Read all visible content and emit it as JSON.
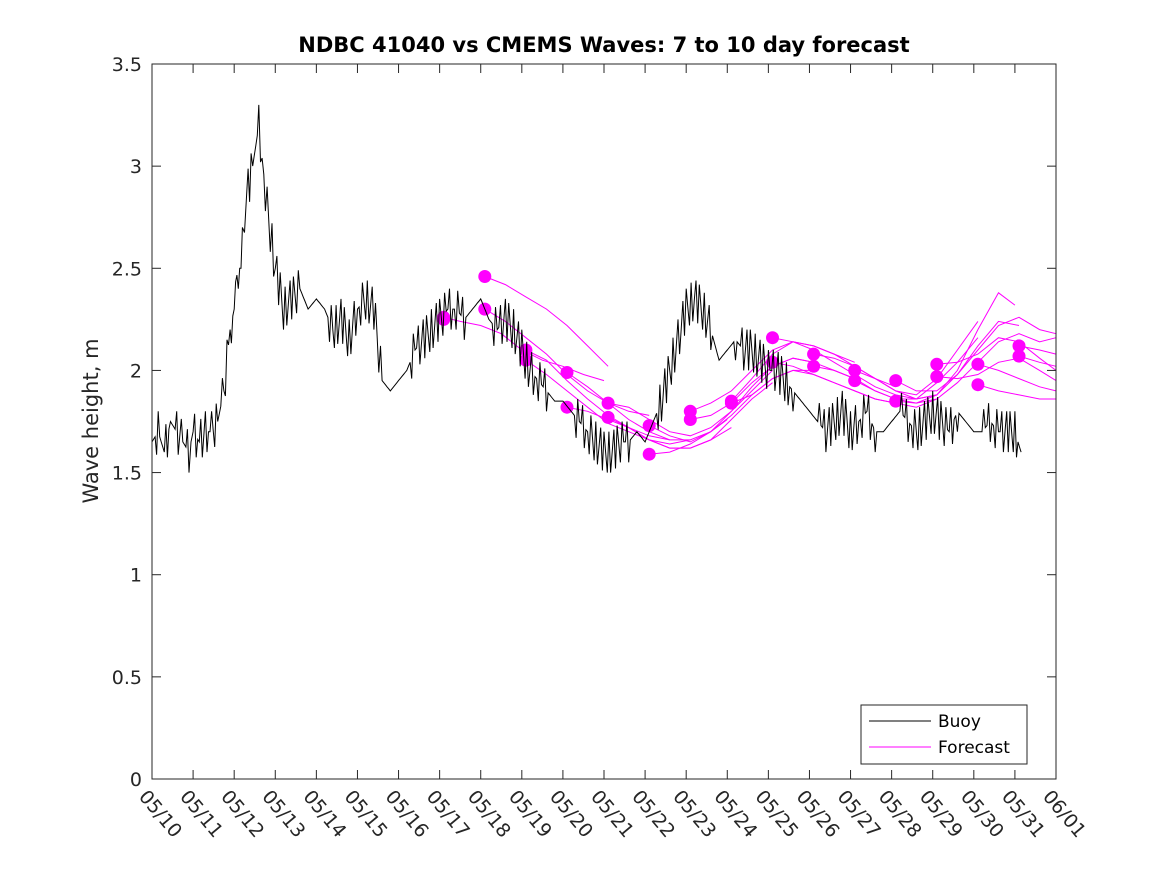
{
  "chart_data": {
    "type": "line",
    "title": "NDBC 41040 vs CMEMS Waves: 7 to 10 day forecast",
    "ylabel": "Wave height, m",
    "xlabel": "",
    "ylim": [
      0,
      3.5
    ],
    "yticks": [
      0,
      0.5,
      1,
      1.5,
      2,
      2.5,
      3,
      3.5
    ],
    "xlim": [
      "05/10",
      "06/01"
    ],
    "xticks": [
      "05/10",
      "05/11",
      "05/12",
      "05/13",
      "05/14",
      "05/15",
      "05/16",
      "05/17",
      "05/18",
      "05/19",
      "05/20",
      "05/21",
      "05/22",
      "05/23",
      "05/24",
      "05/25",
      "05/26",
      "05/27",
      "05/28",
      "05/29",
      "05/30",
      "05/31",
      "06/01"
    ],
    "grid": false,
    "legend": {
      "placement": "bottom-right",
      "entries": [
        "Buoy",
        "Forecast"
      ]
    },
    "colors": {
      "buoy": "#000000",
      "forecast": "#ff00ff"
    },
    "series": [
      {
        "name": "Buoy",
        "x": [
          0.0,
          0.15,
          0.3,
          0.45,
          0.6,
          0.75,
          0.9,
          1.0,
          1.15,
          1.3,
          1.45,
          1.6,
          1.75,
          1.9,
          2.0,
          2.1,
          2.2,
          2.3,
          2.45,
          2.6,
          2.8,
          3.0,
          3.2,
          3.4,
          3.6,
          3.8,
          4.0,
          4.2,
          4.4,
          4.6,
          4.8,
          5.0,
          5.2,
          5.4,
          5.6,
          5.8,
          6.0,
          6.2,
          6.4,
          6.6,
          6.8,
          7.0,
          7.2,
          7.4,
          7.6,
          7.8,
          8.0,
          8.2,
          8.4,
          8.6,
          8.8,
          9.0,
          9.2,
          9.4,
          9.6,
          9.8,
          10.0,
          10.2,
          10.4,
          10.6,
          10.8,
          11.0,
          11.2,
          11.4,
          11.6,
          11.8,
          12.0,
          12.2,
          12.4,
          12.6,
          12.8,
          13.0,
          13.2,
          13.4,
          13.6,
          13.8,
          14.0,
          14.2,
          14.4,
          14.6,
          14.8,
          15.0,
          15.2,
          15.4,
          15.6,
          15.8,
          16.0,
          16.2,
          16.4,
          16.6,
          16.8,
          17.0,
          17.2,
          17.4,
          17.6,
          17.8,
          18.0,
          18.2,
          18.4,
          18.6,
          18.8,
          19.0,
          19.2,
          19.4,
          19.6,
          19.8,
          20.0,
          20.2,
          20.4,
          20.6,
          20.8,
          21.0,
          21.15
        ],
        "y": [
          1.65,
          1.7,
          1.6,
          1.75,
          1.7,
          1.65,
          1.6,
          1.7,
          1.65,
          1.7,
          1.7,
          1.75,
          1.9,
          2.2,
          2.3,
          2.4,
          2.7,
          2.85,
          3.0,
          3.2,
          2.8,
          2.5,
          2.3,
          2.35,
          2.4,
          2.3,
          2.35,
          2.3,
          2.2,
          2.25,
          2.15,
          2.3,
          2.35,
          2.3,
          1.95,
          1.9,
          1.95,
          2.0,
          2.1,
          2.15,
          2.2,
          2.25,
          2.3,
          2.3,
          2.25,
          2.3,
          2.35,
          2.25,
          2.2,
          2.25,
          2.2,
          2.1,
          2.0,
          1.95,
          1.9,
          1.85,
          1.85,
          1.8,
          1.75,
          1.7,
          1.65,
          1.6,
          1.6,
          1.65,
          1.65,
          1.7,
          1.65,
          1.75,
          1.85,
          2.0,
          2.15,
          2.3,
          2.35,
          2.3,
          2.2,
          2.05,
          2.1,
          2.15,
          2.1,
          2.1,
          2.05,
          2.0,
          2.0,
          1.95,
          1.9,
          1.85,
          1.8,
          1.75,
          1.7,
          1.75,
          1.8,
          1.7,
          1.75,
          1.8,
          1.7,
          1.7,
          1.75,
          1.8,
          1.75,
          1.7,
          1.75,
          1.8,
          1.75,
          1.7,
          1.8,
          1.75,
          1.7,
          1.7,
          1.75,
          1.7,
          1.7,
          1.7,
          1.6
        ]
      },
      {
        "name": "Forecast",
        "points": [
          [
            7.1,
            2.26
          ],
          [
            7.1,
            2.25
          ],
          [
            8.1,
            2.46
          ],
          [
            8.1,
            2.3
          ],
          [
            9.1,
            2.1
          ],
          [
            9.1,
            2.05
          ],
          [
            10.1,
            1.99
          ],
          [
            10.1,
            1.82
          ],
          [
            11.1,
            1.84
          ],
          [
            11.1,
            1.77
          ],
          [
            12.1,
            1.73
          ],
          [
            12.1,
            1.59
          ],
          [
            13.1,
            1.8
          ],
          [
            13.1,
            1.76
          ],
          [
            14.1,
            1.85
          ],
          [
            14.1,
            1.84
          ],
          [
            15.1,
            2.16
          ],
          [
            15.1,
            2.04
          ],
          [
            16.1,
            2.08
          ],
          [
            16.1,
            2.02
          ],
          [
            17.1,
            2.0
          ],
          [
            17.1,
            1.95
          ],
          [
            18.1,
            1.95
          ],
          [
            18.1,
            1.85
          ],
          [
            19.1,
            2.03
          ],
          [
            19.1,
            1.97
          ],
          [
            20.1,
            2.03
          ],
          [
            20.1,
            1.93
          ],
          [
            21.1,
            2.12
          ],
          [
            21.1,
            2.07
          ]
        ],
        "traces": [
          {
            "x": [
              7.1,
              7.5,
              8.0,
              8.5,
              9.0,
              9.5,
              10.0,
              10.5,
              11.0
            ],
            "y": [
              2.26,
              2.24,
              2.22,
              2.18,
              2.1,
              2.05,
              2.02,
              1.98,
              1.95
            ]
          },
          {
            "x": [
              8.1,
              8.6,
              9.1,
              9.6,
              10.1,
              10.6,
              11.1
            ],
            "y": [
              2.46,
              2.42,
              2.36,
              2.3,
              2.22,
              2.12,
              2.02
            ]
          },
          {
            "x": [
              8.1,
              8.6,
              9.1,
              9.6,
              10.1,
              10.6,
              11.1,
              11.6,
              12.1
            ],
            "y": [
              2.3,
              2.24,
              2.16,
              2.08,
              1.98,
              1.9,
              1.84,
              1.8,
              1.78
            ]
          },
          {
            "x": [
              9.1,
              9.6,
              10.1,
              10.6,
              11.1,
              11.6,
              12.1,
              12.6
            ],
            "y": [
              2.1,
              2.05,
              1.95,
              1.86,
              1.78,
              1.72,
              1.68,
              1.66
            ]
          },
          {
            "x": [
              9.1,
              9.6,
              10.1,
              10.6,
              11.1,
              11.6,
              12.1,
              12.6,
              13.1
            ],
            "y": [
              2.05,
              1.98,
              1.9,
              1.82,
              1.74,
              1.7,
              1.66,
              1.64,
              1.66
            ]
          },
          {
            "x": [
              10.1,
              10.6,
              11.1,
              11.6,
              12.1,
              12.6,
              13.1,
              13.6,
              14.0
            ],
            "y": [
              1.99,
              1.92,
              1.84,
              1.76,
              1.7,
              1.66,
              1.66,
              1.7,
              1.76
            ]
          },
          {
            "x": [
              10.1,
              10.6,
              11.1,
              11.6,
              12.1,
              12.6,
              13.1,
              13.6,
              14.1
            ],
            "y": [
              1.82,
              1.8,
              1.76,
              1.72,
              1.66,
              1.62,
              1.62,
              1.66,
              1.72
            ]
          },
          {
            "x": [
              11.1,
              11.6,
              12.1,
              12.6,
              13.1,
              13.6,
              14.1,
              14.6,
              15.1
            ],
            "y": [
              1.84,
              1.82,
              1.76,
              1.7,
              1.68,
              1.72,
              1.8,
              1.9,
              2.0
            ]
          },
          {
            "x": [
              11.1,
              11.6,
              12.1,
              12.6,
              13.1,
              13.6,
              14.1,
              14.6,
              15.1
            ],
            "y": [
              1.77,
              1.72,
              1.66,
              1.62,
              1.62,
              1.66,
              1.76,
              1.86,
              1.94
            ]
          },
          {
            "x": [
              12.1,
              12.6,
              13.1,
              13.6,
              14.1,
              14.6,
              15.1,
              15.6,
              16.1
            ],
            "y": [
              1.73,
              1.68,
              1.65,
              1.7,
              1.8,
              1.92,
              2.02,
              2.06,
              2.04
            ]
          },
          {
            "x": [
              12.1,
              12.6,
              13.1,
              13.6,
              14.1,
              14.6,
              15.1,
              15.6,
              16.1
            ],
            "y": [
              1.59,
              1.6,
              1.64,
              1.7,
              1.78,
              1.88,
              1.96,
              2.0,
              2.0
            ]
          },
          {
            "x": [
              13.1,
              13.6,
              14.1,
              14.6,
              15.1,
              15.6,
              16.1,
              16.6,
              17.1
            ],
            "y": [
              1.8,
              1.84,
              1.9,
              2.0,
              2.1,
              2.14,
              2.12,
              2.08,
              2.04
            ]
          },
          {
            "x": [
              13.1,
              13.6,
              14.1,
              14.6,
              15.1,
              15.6,
              16.1,
              16.6,
              17.1
            ],
            "y": [
              1.76,
              1.78,
              1.84,
              1.94,
              2.02,
              2.06,
              2.04,
              2.0,
              1.96
            ]
          },
          {
            "x": [
              14.1,
              14.6,
              15.1,
              15.6,
              16.1,
              16.6,
              17.1,
              17.6,
              18.1
            ],
            "y": [
              1.85,
              1.96,
              2.08,
              2.14,
              2.12,
              2.08,
              2.02,
              1.96,
              1.92
            ]
          },
          {
            "x": [
              14.1,
              14.6,
              15.1,
              15.6,
              16.1,
              16.6,
              17.1,
              17.6,
              18.1
            ],
            "y": [
              1.84,
              1.88,
              1.96,
              2.0,
              1.98,
              1.94,
              1.9,
              1.86,
              1.84
            ]
          },
          {
            "x": [
              15.1,
              15.6,
              16.1,
              16.6,
              17.1,
              17.6,
              18.1,
              18.6,
              19.1
            ],
            "y": [
              2.16,
              2.14,
              2.1,
              2.04,
              1.98,
              1.92,
              1.88,
              1.86,
              1.88
            ]
          },
          {
            "x": [
              15.1,
              15.6,
              16.1,
              16.6,
              17.1,
              17.6,
              18.1,
              18.6,
              19.1
            ],
            "y": [
              2.04,
              2.02,
              1.98,
              1.94,
              1.9,
              1.86,
              1.84,
              1.82,
              1.86
            ]
          },
          {
            "x": [
              16.1,
              16.6,
              17.1,
              17.6,
              18.1,
              18.6,
              19.1,
              19.6,
              20.1
            ],
            "y": [
              2.08,
              2.06,
              2.02,
              1.96,
              1.9,
              1.88,
              1.96,
              2.1,
              2.24
            ]
          },
          {
            "x": [
              16.1,
              16.6,
              17.1,
              17.6,
              18.1,
              18.6,
              19.1,
              19.6,
              20.1
            ],
            "y": [
              2.02,
              2.0,
              1.96,
              1.9,
              1.86,
              1.86,
              1.94,
              2.04,
              2.16
            ]
          },
          {
            "x": [
              17.1,
              17.6,
              18.1,
              18.6,
              19.1,
              19.6,
              20.1,
              20.6,
              21.0
            ],
            "y": [
              2.0,
              1.96,
              1.9,
              1.86,
              1.88,
              2.0,
              2.2,
              2.38,
              2.32
            ]
          },
          {
            "x": [
              17.1,
              17.6,
              18.1,
              18.6,
              19.1,
              19.6,
              20.1,
              20.6,
              21.1
            ],
            "y": [
              1.95,
              1.9,
              1.86,
              1.84,
              1.88,
              1.98,
              2.12,
              2.24,
              2.22
            ]
          },
          {
            "x": [
              18.1,
              18.6,
              19.1,
              19.6,
              20.1,
              20.6,
              21.1,
              21.6,
              22.0
            ],
            "y": [
              1.95,
              1.9,
              1.9,
              1.98,
              2.1,
              2.22,
              2.26,
              2.2,
              2.18
            ]
          },
          {
            "x": [
              18.1,
              18.6,
              19.1,
              19.6,
              20.1,
              20.6,
              21.1,
              21.6,
              22.0
            ],
            "y": [
              1.85,
              1.84,
              1.86,
              1.94,
              2.04,
              2.14,
              2.18,
              2.14,
              2.16
            ]
          },
          {
            "x": [
              19.1,
              19.6,
              20.1,
              20.6,
              21.1,
              21.6,
              22.0
            ],
            "y": [
              2.03,
              2.04,
              2.08,
              2.16,
              2.14,
              2.06,
              2.0
            ]
          },
          {
            "x": [
              19.1,
              19.6,
              20.1,
              20.6,
              21.1,
              21.6,
              22.0
            ],
            "y": [
              1.97,
              1.96,
              1.98,
              2.04,
              2.06,
              2.0,
              1.95
            ]
          },
          {
            "x": [
              20.1,
              20.6,
              21.1,
              21.6,
              22.0
            ],
            "y": [
              2.03,
              2.0,
              1.96,
              1.92,
              1.9
            ]
          },
          {
            "x": [
              20.1,
              20.6,
              21.1,
              21.6,
              22.0
            ],
            "y": [
              1.93,
              1.9,
              1.88,
              1.86,
              1.86
            ]
          },
          {
            "x": [
              21.1,
              21.6,
              22.0
            ],
            "y": [
              2.12,
              2.1,
              2.08
            ]
          },
          {
            "x": [
              21.1,
              21.6,
              22.0
            ],
            "y": [
              2.07,
              2.04,
              2.02
            ]
          }
        ]
      }
    ]
  }
}
